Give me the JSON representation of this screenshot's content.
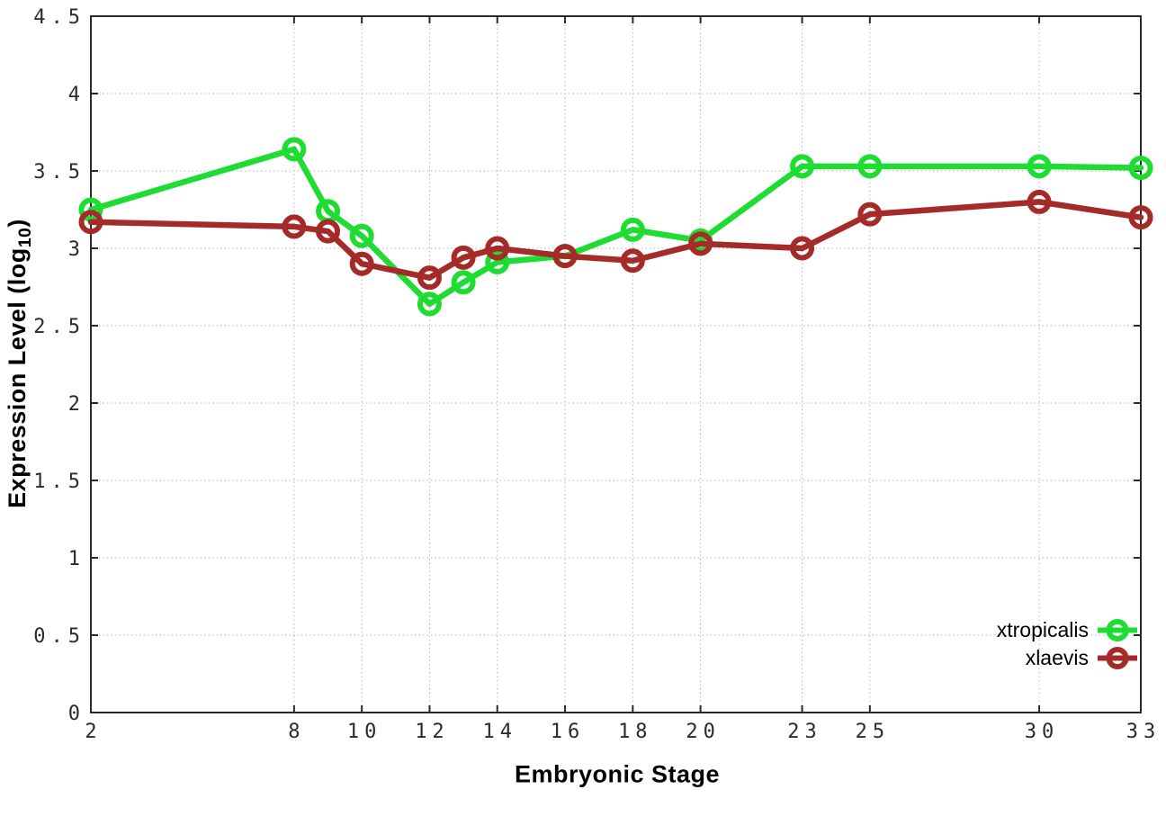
{
  "chart_data": {
    "type": "line",
    "title": "",
    "xlabel": "Embryonic Stage",
    "ylabel": {
      "prefix": "Expression Level (log",
      "sub": "10",
      "suffix": ")"
    },
    "xlim": [
      2,
      33
    ],
    "ylim": [
      0,
      4.5
    ],
    "grid": true,
    "legend_position": "bottom-right",
    "x": [
      2,
      8,
      9,
      10,
      12,
      13,
      14,
      16,
      18,
      20,
      23,
      25,
      30,
      33
    ],
    "xtick_values": [
      2,
      8,
      10,
      12,
      14,
      16,
      18,
      20,
      23,
      25,
      30,
      33
    ],
    "xtick_labels": [
      "2",
      "8",
      "10",
      "12",
      "14",
      "16",
      "18",
      "20",
      "23",
      "25",
      "30",
      "33"
    ],
    "ytick_values": [
      0,
      0.5,
      1,
      1.5,
      2,
      2.5,
      3,
      3.5,
      4,
      4.5
    ],
    "ytick_labels": [
      "0",
      "0.5",
      "1",
      "1.5",
      "2",
      "2.5",
      "3",
      "3.5",
      "4",
      "4.5"
    ],
    "series": [
      {
        "name": "xtropicalis",
        "color": "#1edc32",
        "marker": "open-circle",
        "values": [
          3.25,
          3.64,
          3.24,
          3.08,
          2.64,
          2.78,
          2.91,
          2.95,
          3.12,
          3.05,
          3.53,
          3.53,
          3.53,
          3.52
        ]
      },
      {
        "name": "xlaevis",
        "color": "#a42b27",
        "marker": "open-circle",
        "values": [
          3.17,
          3.14,
          3.11,
          2.9,
          2.81,
          2.94,
          3.0,
          2.95,
          2.92,
          3.03,
          3.0,
          3.22,
          3.3,
          3.2
        ]
      }
    ],
    "colors": {
      "grid": "#b5b5b5",
      "border": "#2a2a2a",
      "tick_text": "#2b2b2b"
    }
  }
}
